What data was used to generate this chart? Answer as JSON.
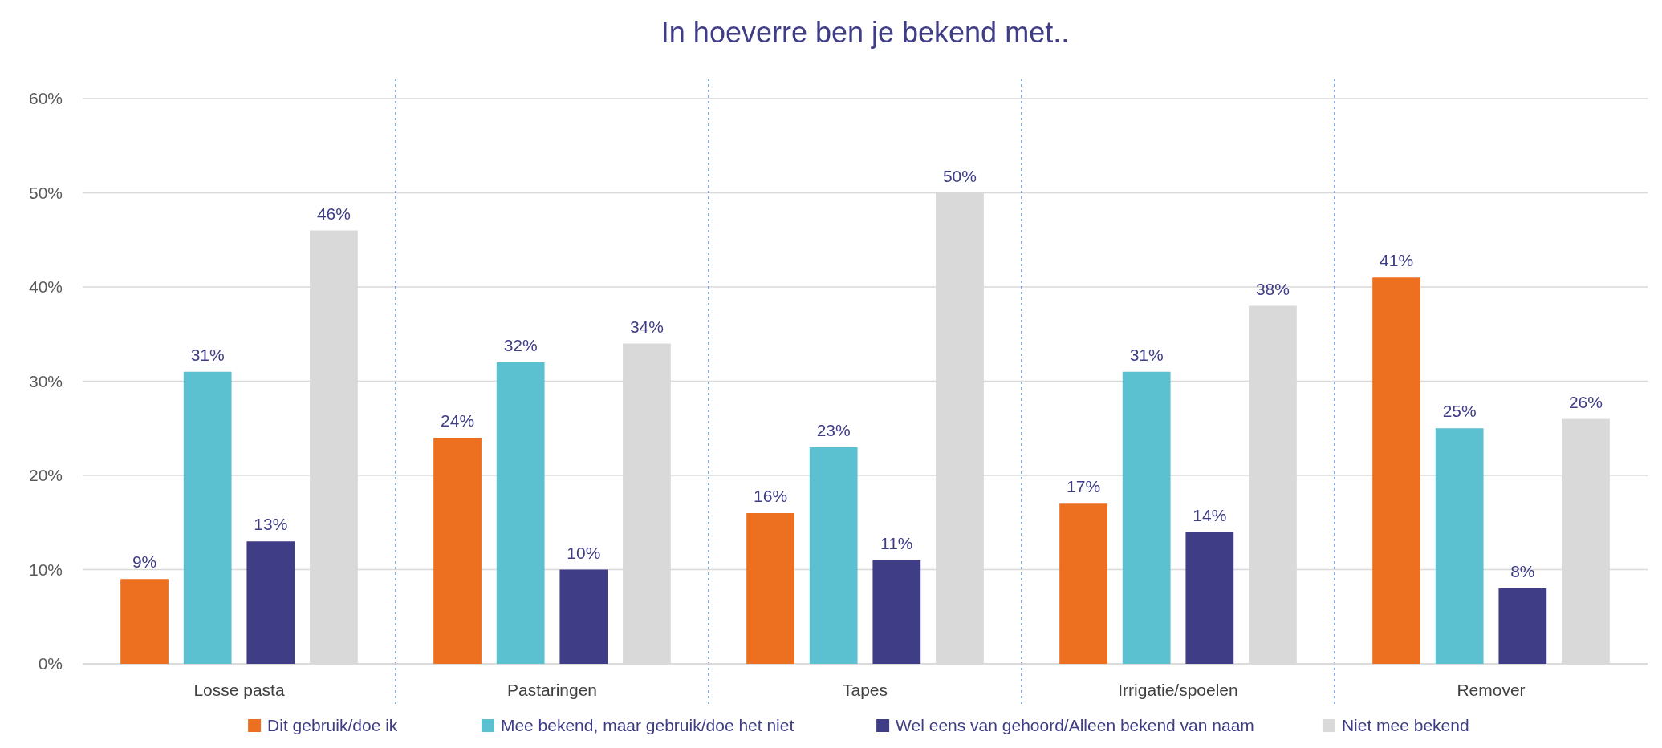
{
  "chart_data": {
    "type": "bar",
    "title": "In hoeverre ben je bekend met..",
    "categories": [
      "Losse pasta",
      "Pastaringen",
      "Tapes",
      "Irrigatie/spoelen",
      "Remover"
    ],
    "series": [
      {
        "name": "Dit gebruik/doe ik",
        "color": "#ed7020",
        "values": [
          9,
          24,
          16,
          17,
          41
        ],
        "value_labels": [
          "9%",
          "24%",
          "16%",
          "17%",
          "41%"
        ]
      },
      {
        "name": "Mee bekend, maar gebruik/doe het niet",
        "color": "#5bc0d0",
        "values": [
          31,
          32,
          23,
          31,
          25
        ],
        "value_labels": [
          "31%",
          "32%",
          "23%",
          "31%",
          "25%"
        ]
      },
      {
        "name": "Wel eens van gehoord/Alleen bekend van naam",
        "color": "#3f3d85",
        "values": [
          13,
          10,
          11,
          14,
          8
        ],
        "value_labels": [
          "13%",
          "10%",
          "11%",
          "14%",
          "8%"
        ]
      },
      {
        "name": "Niet mee bekend",
        "color": "#d9d9d9",
        "values": [
          46,
          34,
          50,
          38,
          26
        ],
        "value_labels": [
          "46%",
          "34%",
          "50%",
          "38%",
          "26%"
        ]
      }
    ],
    "ylim": [
      0,
      60
    ],
    "yticks": [
      {
        "value": 0,
        "label": "0%"
      },
      {
        "value": 10,
        "label": "10%"
      },
      {
        "value": 20,
        "label": "20%"
      },
      {
        "value": 30,
        "label": "30%"
      },
      {
        "value": 40,
        "label": "40%"
      },
      {
        "value": 50,
        "label": "50%"
      },
      {
        "value": 60,
        "label": "60%"
      }
    ],
    "grid": true,
    "legend": "bottom"
  }
}
